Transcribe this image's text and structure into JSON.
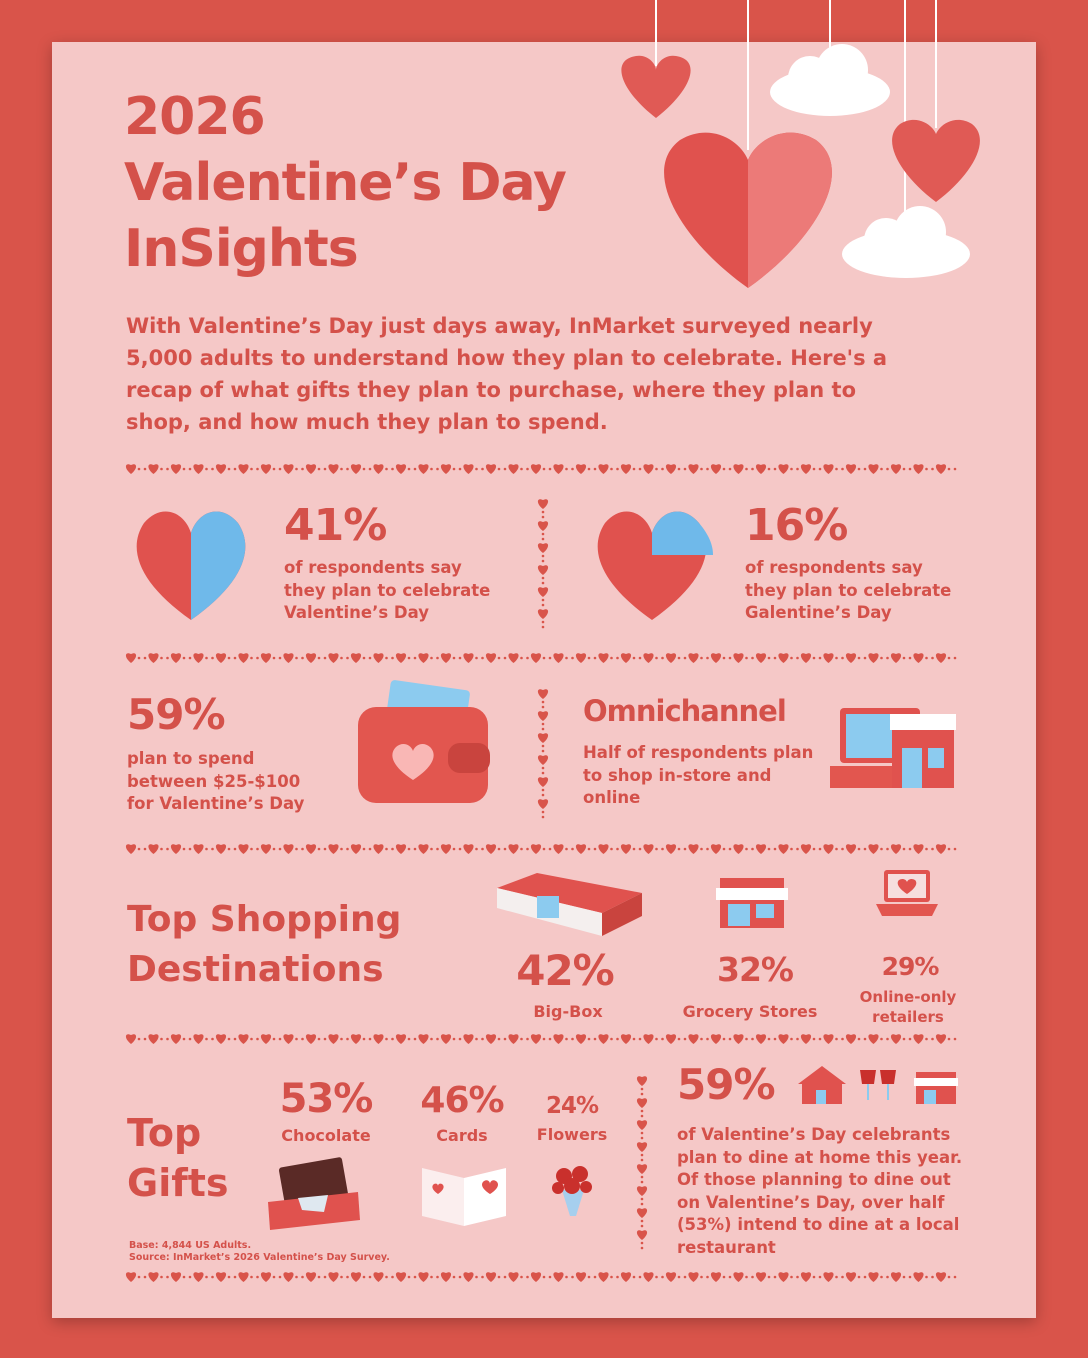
{
  "header": {
    "title_lines": [
      "2026",
      "Valentine’s Day",
      "InSights"
    ],
    "intro": "With Valentine’s Day just days away, InMarket surveyed nearly 5,000 adults to understand how they plan to celebrate. Here's a recap of what gifts they plan to purchase, where they plan to shop, and how much they plan to spend."
  },
  "stats": [
    {
      "value": "41%",
      "desc": [
        {
          "text": "of respondents say they plan to celebrate "
        },
        {
          "text": "Valentine’s Day",
          "bold": true
        }
      ]
    },
    {
      "value": "16%",
      "desc": [
        {
          "text": "of respondents say they plan to celebrate "
        },
        {
          "text": "Galentine’s Day",
          "bold": true
        }
      ]
    }
  ],
  "spend": {
    "value": "59%",
    "desc": [
      {
        "text": "plan to spend between "
      },
      {
        "text": "$25-$100",
        "bold": true
      },
      {
        "text": " for Valentine’s Day"
      }
    ]
  },
  "omnichannel": {
    "title": "Omnichannel",
    "desc": [
      {
        "text": "Half",
        "bold": true
      },
      {
        "text": " of respondents plan to shop "
      },
      {
        "text": "in-store and online",
        "bold": true
      }
    ]
  },
  "destinations": {
    "heading": "Top Shopping Destinations",
    "items": [
      {
        "value": "42%",
        "label": "Big-Box"
      },
      {
        "value": "32%",
        "label": "Grocery Stores"
      },
      {
        "value": "29%",
        "label": "Online-only retailers"
      }
    ]
  },
  "gifts": {
    "heading": "Top Gifts",
    "items": [
      {
        "value": "53%",
        "label": "Chocolate"
      },
      {
        "value": "46%",
        "label": "Cards"
      },
      {
        "value": "24%",
        "label": "Flowers"
      }
    ],
    "notes": [
      "Base: 4,844 US Adults.",
      "Source: InMarket’s 2026 Valentine’s Day Survey."
    ]
  },
  "dining": {
    "value": "59%",
    "desc": [
      {
        "text": "of Valentine’s Day celebrants plan to "
      },
      {
        "text": "dine at home",
        "bold": true
      },
      {
        "text": " this year. Of those planning to dine out on Valentine’s Day, over half "
      },
      {
        "text": "(53%)",
        "bold": true
      },
      {
        "text": " intend to dine at a "
      },
      {
        "text": "local restaurant",
        "bold": true
      }
    ]
  }
}
